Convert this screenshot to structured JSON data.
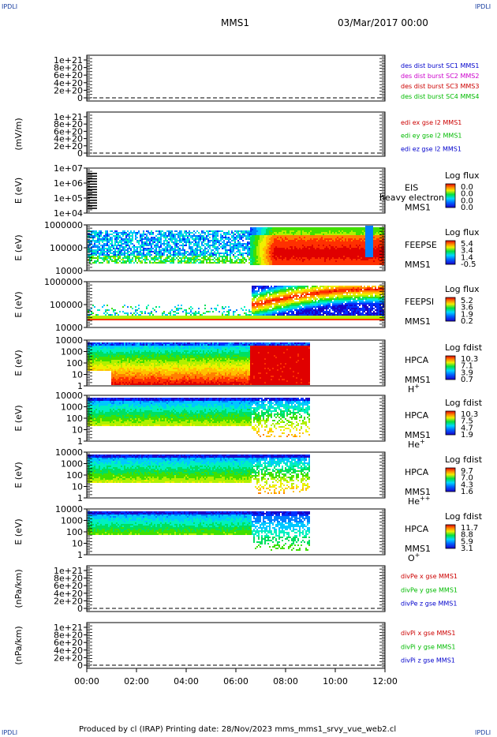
{
  "header": {
    "corner_tl": "IPDLI",
    "corner_tr": "IPDLI",
    "corner_bl": "IPDLI",
    "corner_br": "IPDLI",
    "spacecraft": "MMS1",
    "datetime": "03/Mar/2017 00:00"
  },
  "footer": {
    "text": "Produced by cl (IRAP)   Printing date: 28/Nov/2023   mms_mms1_srvy_vue_web2.cl"
  },
  "colors": {
    "blue": "#0000cc",
    "magenta": "#cc00cc",
    "red": "#cc0000",
    "green": "#00bb00",
    "dashed": "#000000"
  },
  "chart_data": [
    {
      "id": "p1",
      "type": "line",
      "ylabel": "",
      "yticks": [
        "1e+21",
        "8e+20",
        "6e+20",
        "4e+20",
        "2e+20",
        "0"
      ],
      "legend": [
        {
          "label": "des dist burst SC1 MMS1",
          "color": "blue"
        },
        {
          "label": "des dist burst SC2 MMS2",
          "color": "magenta"
        },
        {
          "label": "des dist burst SC3 MMS3",
          "color": "red"
        },
        {
          "label": "des dist burst SC4 MMS4",
          "color": "green"
        }
      ]
    },
    {
      "id": "p2",
      "type": "line",
      "ylabel": "(mV/m)",
      "yticks": [
        "1e+21",
        "8e+20",
        "6e+20",
        "4e+20",
        "2e+20",
        "0"
      ],
      "legend": [
        {
          "label": "edi ex gse l2 MMS1",
          "color": "red"
        },
        {
          "label": "edi ey gse l2 MMS1",
          "color": "green"
        },
        {
          "label": "edi ez gse l2 MMS1",
          "color": "blue"
        }
      ]
    },
    {
      "id": "p3",
      "type": "heatmap",
      "ylabel": "E (eV)",
      "yticks": [
        "1e+07",
        "1e+06",
        "1e+05",
        "1e+04"
      ],
      "labels": [
        "EIS",
        "MMS1"
      ],
      "overlay": "heavy electron to",
      "cbar_title": "Log flux",
      "cbar_ticks": [
        "0.0",
        "0.0",
        "0.0",
        "0.0"
      ]
    },
    {
      "id": "p4",
      "type": "heatmap",
      "ylabel": "E (eV)",
      "yticks": [
        "1000000",
        "100000",
        "10000"
      ],
      "labels": [
        "FEEPSE",
        "MMS1"
      ],
      "cbar_title": "Log flux",
      "cbar_ticks": [
        "5.4",
        "3.4",
        "1.4",
        "-0.5"
      ]
    },
    {
      "id": "p5",
      "type": "heatmap",
      "ylabel": "E (eV)",
      "yticks": [
        "1000000",
        "100000",
        "10000"
      ],
      "labels": [
        "FEEPSI",
        "MMS1"
      ],
      "cbar_title": "Log flux",
      "cbar_ticks": [
        "5.2",
        "3.6",
        "1.9",
        "0.2"
      ]
    },
    {
      "id": "p6",
      "type": "heatmap",
      "ylabel": "E (eV)",
      "yticks": [
        "10000",
        "1000",
        "100",
        "10",
        "1"
      ],
      "labels": [
        "HPCA",
        "MMS1"
      ],
      "species": "H",
      "species_sup": "+",
      "cbar_title": "Log fdist",
      "cbar_ticks": [
        "10.3",
        "7.1",
        "3.9",
        "0.7"
      ]
    },
    {
      "id": "p7",
      "type": "heatmap",
      "ylabel": "E (eV)",
      "yticks": [
        "10000",
        "1000",
        "100",
        "10",
        "1"
      ],
      "labels": [
        "HPCA",
        "MMS1"
      ],
      "species": "He",
      "species_sup": "+",
      "cbar_title": "Log fdist",
      "cbar_ticks": [
        "10.3",
        "7.5",
        "4.7",
        "1.9"
      ]
    },
    {
      "id": "p8",
      "type": "heatmap",
      "ylabel": "E (eV)",
      "yticks": [
        "10000",
        "1000",
        "100",
        "10",
        "1"
      ],
      "labels": [
        "HPCA",
        "MMS1"
      ],
      "species": "He",
      "species_sup": "++",
      "cbar_title": "Log fdist",
      "cbar_ticks": [
        "9.7",
        "7.0",
        "4.3",
        "1.6"
      ]
    },
    {
      "id": "p9",
      "type": "heatmap",
      "ylabel": "E (eV)",
      "yticks": [
        "10000",
        "1000",
        "100",
        "10",
        "1"
      ],
      "labels": [
        "HPCA",
        "MMS1"
      ],
      "species": "O",
      "species_sup": "+",
      "cbar_title": "Log fdist",
      "cbar_ticks": [
        "11.7",
        "8.8",
        "5.9",
        "3.1"
      ]
    },
    {
      "id": "p10",
      "type": "line",
      "ylabel": "(nPa/km)",
      "yticks": [
        "1e+21",
        "8e+20",
        "6e+20",
        "4e+20",
        "2e+20",
        "0"
      ],
      "legend": [
        {
          "label": "divPe x gse MMS1",
          "color": "red"
        },
        {
          "label": "divPe y gse MMS1",
          "color": "green"
        },
        {
          "label": "divPe z gse MMS1",
          "color": "blue"
        }
      ]
    },
    {
      "id": "p11",
      "type": "line",
      "ylabel": "(nPa/km)",
      "yticks": [
        "1e+21",
        "8e+20",
        "6e+20",
        "4e+20",
        "2e+20",
        "0"
      ],
      "legend": [
        {
          "label": "divPi x gse MMS1",
          "color": "red"
        },
        {
          "label": "divPi y gse MMS1",
          "color": "green"
        },
        {
          "label": "divPi z gse MMS1",
          "color": "blue"
        }
      ],
      "xticks": [
        "00:00",
        "02:00",
        "04:00",
        "06:00",
        "08:00",
        "10:00",
        "12:00"
      ]
    }
  ]
}
